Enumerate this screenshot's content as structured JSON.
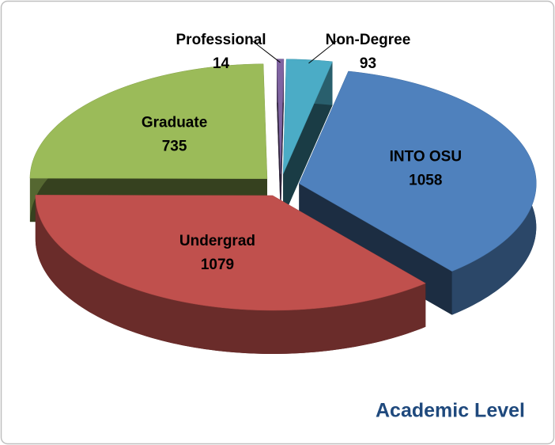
{
  "chart_data": {
    "type": "pie",
    "title": "Academic Level",
    "categories": [
      "INTO OSU",
      "Undergrad",
      "Graduate",
      "Professional",
      "Non-Degree"
    ],
    "values": [
      1058,
      1079,
      735,
      14,
      93
    ],
    "colors": [
      "#4f81bd",
      "#c0504d",
      "#9bbb59",
      "#8064a2",
      "#4bacc6"
    ],
    "exploded": true,
    "three_d": true
  }
}
